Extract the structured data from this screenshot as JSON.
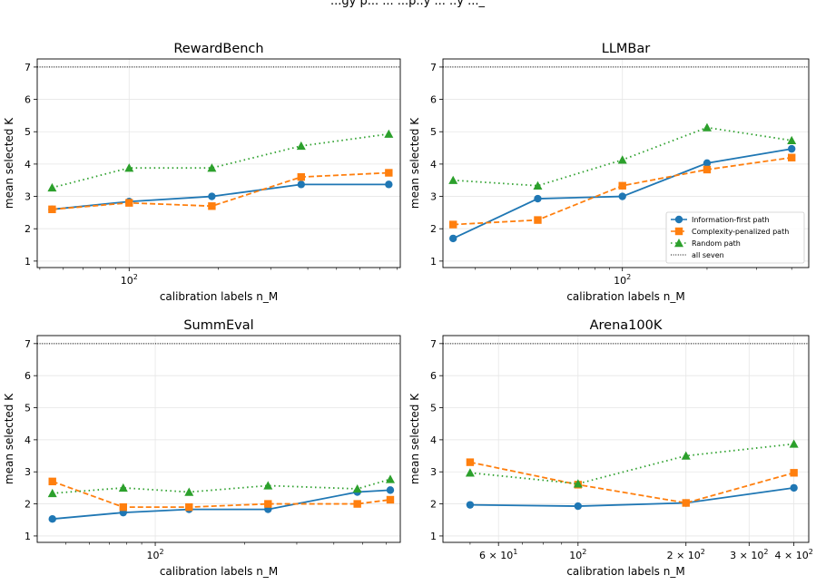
{
  "figure": {
    "suptitle": "...gy p... ... ...p..y ... ..y ..._"
  },
  "chart_data": [
    {
      "type": "line",
      "title": "RewardBench",
      "xlabel": "calibration labels n_M",
      "ylabel": "mean selected K",
      "xscale": "log",
      "xlim": [
        49,
        820
      ],
      "ylim": [
        0.8,
        7.25
      ],
      "yticks": [
        "1",
        "2",
        "3",
        "4",
        "5",
        "6",
        "7"
      ],
      "xticks": [
        {
          "value": 100,
          "base": "10",
          "exp": "2"
        }
      ],
      "grid": true,
      "reference_line": {
        "label": "all seven",
        "y": 7
      },
      "series": [
        {
          "name": "Information-first path",
          "color": "#1f77b4",
          "marker": "circle",
          "dash": "solid",
          "x": [
            55,
            100,
            190,
            380,
            750
          ],
          "y": [
            2.6,
            2.84,
            3.0,
            3.37,
            3.37
          ]
        },
        {
          "name": "Complexity-penalized path",
          "color": "#ff7f0e",
          "marker": "square",
          "dash": "dashed",
          "x": [
            55,
            100,
            190,
            380,
            750
          ],
          "y": [
            2.6,
            2.8,
            2.7,
            3.6,
            3.73
          ]
        },
        {
          "name": "Random path",
          "color": "#2ca02c",
          "marker": "triangle",
          "dash": "dotted",
          "x": [
            55,
            100,
            190,
            380,
            750
          ],
          "y": [
            3.27,
            3.88,
            3.88,
            4.56,
            4.93
          ]
        }
      ]
    },
    {
      "type": "line",
      "title": "LLMBar",
      "xlabel": "calibration labels n_M",
      "ylabel": "mean selected K",
      "xscale": "log",
      "xlim": [
        23,
        460
      ],
      "ylim": [
        0.8,
        7.25
      ],
      "yticks": [
        "1",
        "2",
        "3",
        "4",
        "5",
        "6",
        "7"
      ],
      "xticks": [
        {
          "value": 100,
          "base": "10",
          "exp": "2"
        }
      ],
      "grid": true,
      "reference_line": {
        "label": "all seven",
        "y": 7
      },
      "legend": {
        "position": "lower right"
      },
      "series": [
        {
          "name": "Information-first path",
          "color": "#1f77b4",
          "marker": "circle",
          "dash": "solid",
          "x": [
            25,
            50,
            100,
            200,
            400
          ],
          "y": [
            1.7,
            2.93,
            3.0,
            4.03,
            4.47
          ]
        },
        {
          "name": "Complexity-penalized path",
          "color": "#ff7f0e",
          "marker": "square",
          "dash": "dashed",
          "x": [
            25,
            50,
            100,
            200,
            400
          ],
          "y": [
            2.13,
            2.27,
            3.33,
            3.83,
            4.2
          ]
        },
        {
          "name": "Random path",
          "color": "#2ca02c",
          "marker": "triangle",
          "dash": "dotted",
          "x": [
            25,
            50,
            100,
            200,
            400
          ],
          "y": [
            3.5,
            3.33,
            4.13,
            5.13,
            4.73
          ]
        }
      ]
    },
    {
      "type": "line",
      "title": "SummEval",
      "xlabel": "calibration labels n_M",
      "ylabel": "mean selected K",
      "xscale": "log",
      "xlim": [
        40,
        670
      ],
      "ylim": [
        0.8,
        7.25
      ],
      "yticks": [
        "1",
        "2",
        "3",
        "4",
        "5",
        "6",
        "7"
      ],
      "xticks": [
        {
          "value": 100,
          "base": "10",
          "exp": "2"
        }
      ],
      "grid": true,
      "reference_line": {
        "label": "all seven",
        "y": 7
      },
      "series": [
        {
          "name": "Information-first path",
          "color": "#1f77b4",
          "marker": "circle",
          "dash": "solid",
          "x": [
            45,
            78,
            130,
            240,
            480,
            620
          ],
          "y": [
            1.53,
            1.73,
            1.83,
            1.83,
            2.37,
            2.43
          ]
        },
        {
          "name": "Complexity-penalized path",
          "color": "#ff7f0e",
          "marker": "square",
          "dash": "dashed",
          "x": [
            45,
            78,
            130,
            240,
            480,
            620
          ],
          "y": [
            2.7,
            1.9,
            1.9,
            2.0,
            2.0,
            2.13
          ]
        },
        {
          "name": "Random path",
          "color": "#2ca02c",
          "marker": "triangle",
          "dash": "dotted",
          "x": [
            45,
            78,
            130,
            240,
            480,
            620
          ],
          "y": [
            2.33,
            2.5,
            2.37,
            2.57,
            2.47,
            2.77
          ]
        }
      ]
    },
    {
      "type": "line",
      "title": "Arena100K",
      "xlabel": "calibration labels n_M",
      "ylabel": "mean selected K",
      "xscale": "log",
      "xlim": [
        42,
        440
      ],
      "ylim": [
        0.8,
        7.25
      ],
      "yticks": [
        "1",
        "2",
        "3",
        "4",
        "5",
        "6",
        "7"
      ],
      "xticks": [
        {
          "value": 60,
          "coef": "6 × ",
          "base": "10",
          "exp": "1"
        },
        {
          "value": 100,
          "coef": "",
          "base": "10",
          "exp": "2"
        },
        {
          "value": 200,
          "coef": "2 × ",
          "base": "10",
          "exp": "2"
        },
        {
          "value": 300,
          "coef": "3 × ",
          "base": "10",
          "exp": "2"
        },
        {
          "value": 400,
          "coef": "4 × ",
          "base": "10",
          "exp": "2"
        }
      ],
      "grid": true,
      "reference_line": {
        "label": "all seven",
        "y": 7
      },
      "series": [
        {
          "name": "Information-first path",
          "color": "#1f77b4",
          "marker": "circle",
          "dash": "solid",
          "x": [
            50,
            100,
            200,
            400
          ],
          "y": [
            1.97,
            1.93,
            2.03,
            2.5
          ]
        },
        {
          "name": "Complexity-penalized path",
          "color": "#ff7f0e",
          "marker": "square",
          "dash": "dashed",
          "x": [
            50,
            100,
            200,
            400
          ],
          "y": [
            3.3,
            2.6,
            2.03,
            2.97
          ]
        },
        {
          "name": "Random path",
          "color": "#2ca02c",
          "marker": "triangle",
          "dash": "dotted",
          "x": [
            50,
            100,
            200,
            400
          ],
          "y": [
            2.97,
            2.63,
            3.5,
            3.87
          ]
        }
      ]
    }
  ]
}
